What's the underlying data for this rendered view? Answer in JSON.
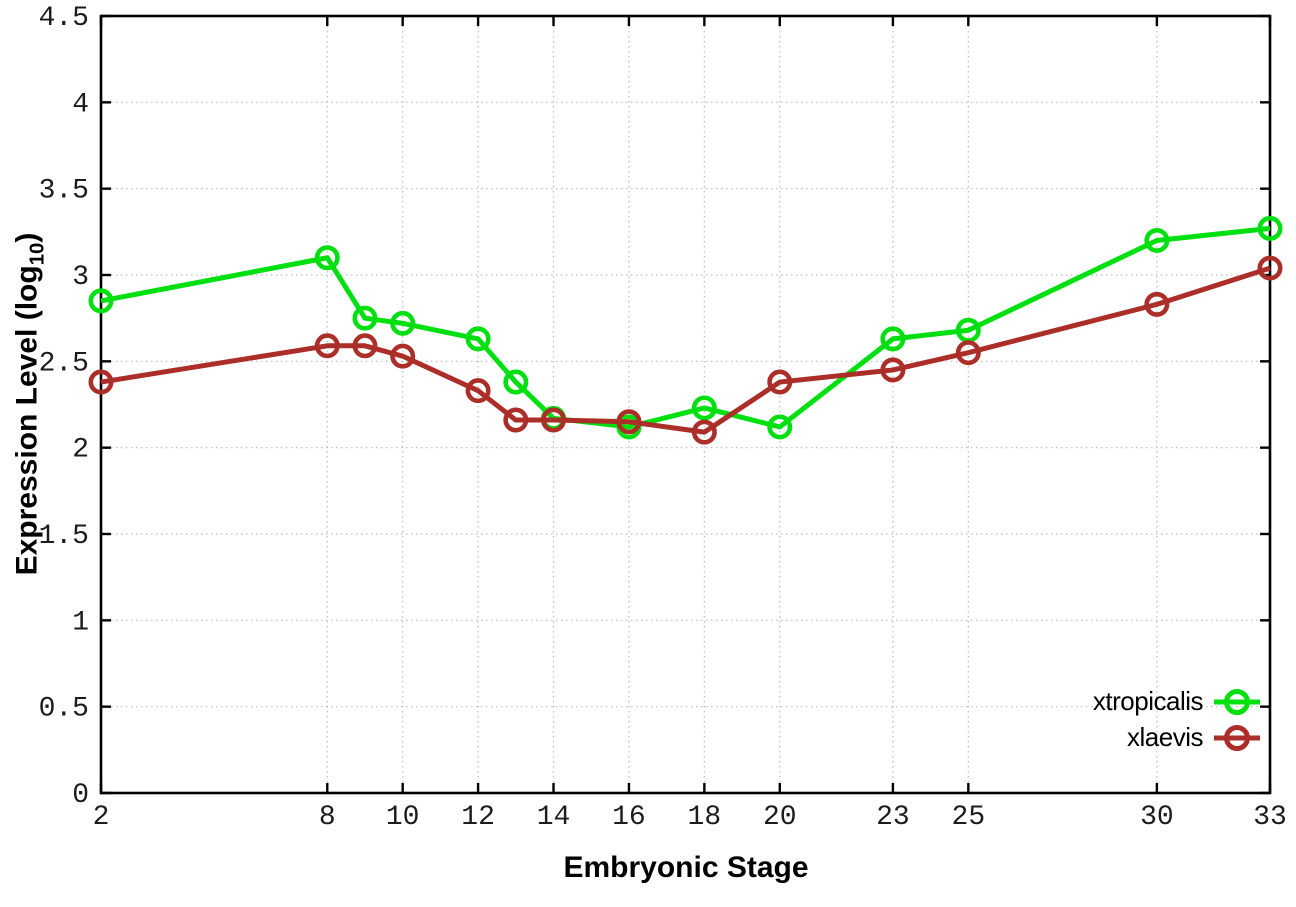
{
  "chart_data": {
    "type": "line",
    "title": "",
    "xlabel": "Embryonic Stage",
    "ylabel_prefix": "Expression Level (log",
    "ylabel_sub": "10",
    "ylabel_suffix": ")",
    "xlim": [
      2,
      33
    ],
    "ylim": [
      0,
      4.5
    ],
    "x_ticks": [
      2,
      8,
      10,
      12,
      14,
      16,
      18,
      20,
      23,
      25,
      30,
      33
    ],
    "x_tick_labels": [
      "2",
      "8",
      "10",
      "12",
      "14",
      "16",
      "18",
      "20",
      "23",
      "25",
      "30",
      "33"
    ],
    "y_ticks": [
      0,
      0.5,
      1,
      1.5,
      2,
      2.5,
      3,
      3.5,
      4,
      4.5
    ],
    "y_tick_labels": [
      "0",
      "0.5",
      "1",
      "1.5",
      "2",
      "2.5",
      "3",
      "3.5",
      "4",
      "4.5"
    ],
    "grid": true,
    "grid_style": "dotted",
    "grid_color": "#bbbbbb",
    "axis_color": "#000000",
    "legend_position": "bottom-right",
    "x": [
      2,
      8,
      9,
      10,
      12,
      13,
      14,
      16,
      18,
      20,
      23,
      25,
      30,
      33
    ],
    "series": [
      {
        "name": "xtropicalis",
        "color": "#00e010",
        "marker": "open-circle",
        "values": [
          2.85,
          3.1,
          2.75,
          2.72,
          2.63,
          2.38,
          2.17,
          2.12,
          2.23,
          2.12,
          2.63,
          2.68,
          3.2,
          3.27
        ]
      },
      {
        "name": "xlaevis",
        "color": "#ab2e28",
        "marker": "open-circle",
        "values": [
          2.38,
          2.59,
          2.59,
          2.53,
          2.33,
          2.16,
          2.16,
          2.15,
          2.09,
          2.38,
          2.45,
          2.55,
          2.83,
          3.04
        ]
      }
    ]
  }
}
